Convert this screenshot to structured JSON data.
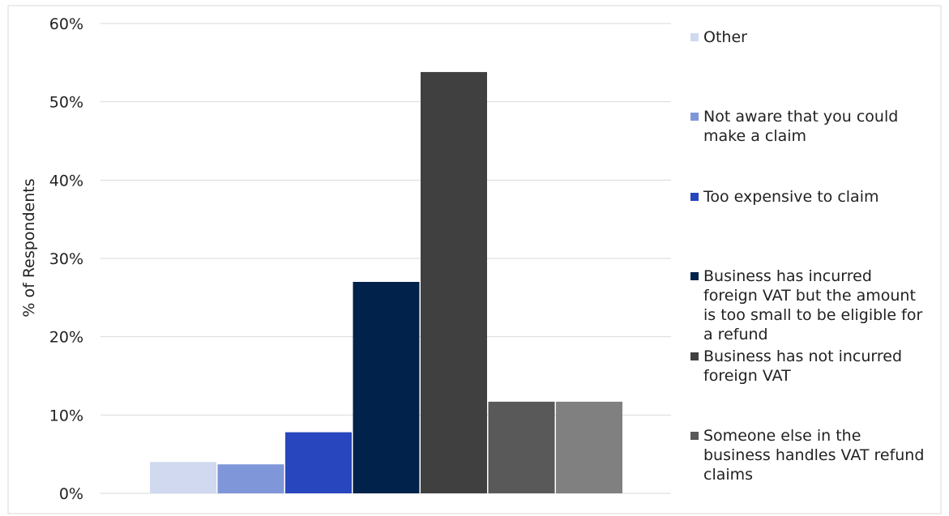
{
  "chart_data": {
    "type": "bar",
    "title": "",
    "xlabel": "",
    "ylabel": "% of Respondents",
    "ylim": [
      0,
      60
    ],
    "yticks": [
      0,
      10,
      20,
      30,
      40,
      50,
      60
    ],
    "ytick_labels": [
      "0%",
      "10%",
      "20%",
      "30%",
      "40%",
      "50%",
      "60%"
    ],
    "grid": "horizontal",
    "legend_position": "right",
    "series": [
      {
        "name": "Other",
        "value": 4,
        "color": "#d0d9f0"
      },
      {
        "name": "Not aware that you could make a claim",
        "value": 3.7,
        "color": "#7f97d9"
      },
      {
        "name": "Too expensive to claim",
        "value": 7.8,
        "color": "#2846bd"
      },
      {
        "name": "Business has incurred foreign VAT but the amount is too small to be eligible for a refund",
        "value": 27,
        "color": "#00224b"
      },
      {
        "name": "Business has not incurred foreign VAT",
        "value": 53.8,
        "color": "#404040"
      },
      {
        "name": "Someone else in the business handles VAT refund claims",
        "value": 11.7,
        "color": "#595959"
      },
      {
        "name": "",
        "value": 11.7,
        "color": "#808080"
      }
    ]
  }
}
